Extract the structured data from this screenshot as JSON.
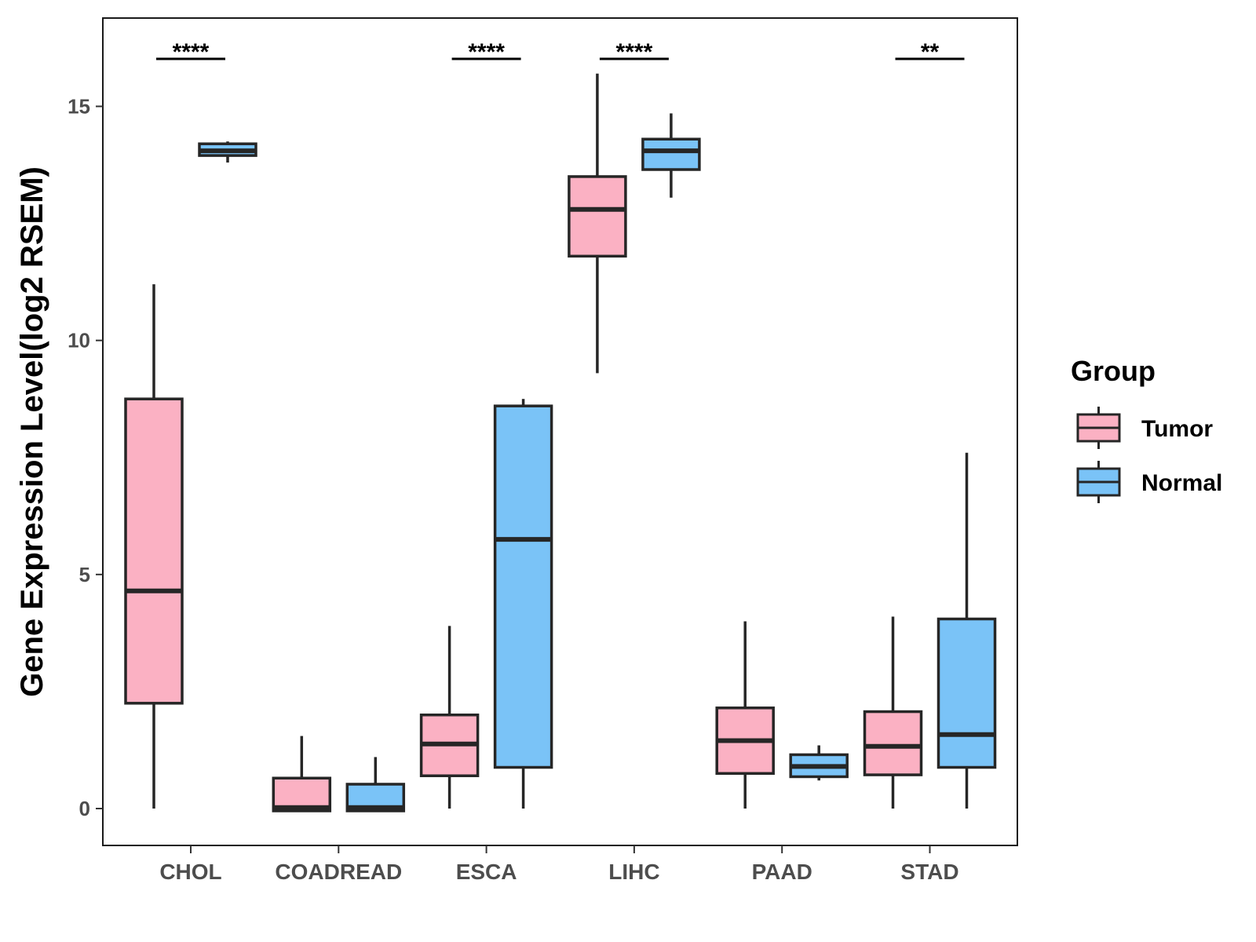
{
  "chart_data": {
    "type": "boxplot",
    "ylabel": "Gene Expression Level(log2 RSEM)",
    "xlabel": "",
    "ylim": [
      -0.8,
      16.9
    ],
    "yticks": [
      0,
      5,
      10,
      15
    ],
    "ytick_labels": [
      "0",
      "5",
      "10",
      "15"
    ],
    "categories": [
      "CHOL",
      "COADREAD",
      "ESCA",
      "LIHC",
      "PAAD",
      "STAD"
    ],
    "legend": {
      "title": "Group",
      "placement": "right",
      "items": [
        {
          "label": "Tumor",
          "color": "#FBB1C3"
        },
        {
          "label": "Normal",
          "color": "#7AC3F7"
        }
      ]
    },
    "series": [
      {
        "name": "Tumor",
        "color": "#FBB1C3",
        "boxes": [
          {
            "min": 0.0,
            "q1": 2.25,
            "median": 4.65,
            "q3": 8.75,
            "max": 11.2
          },
          {
            "min": -0.05,
            "q1": -0.05,
            "median": 0.02,
            "q3": 0.65,
            "max": 1.55
          },
          {
            "min": 0.0,
            "q1": 0.7,
            "median": 1.38,
            "q3": 2.0,
            "max": 3.9
          },
          {
            "min": 9.3,
            "q1": 11.8,
            "median": 12.8,
            "q3": 13.5,
            "max": 15.7
          },
          {
            "min": 0.0,
            "q1": 0.75,
            "median": 1.45,
            "q3": 2.15,
            "max": 4.0
          },
          {
            "min": 0.0,
            "q1": 0.72,
            "median": 1.33,
            "q3": 2.07,
            "max": 4.1
          }
        ]
      },
      {
        "name": "Normal",
        "color": "#7AC3F7",
        "boxes": [
          {
            "min": 13.8,
            "q1": 13.95,
            "median": 14.05,
            "q3": 14.2,
            "max": 14.25
          },
          {
            "min": -0.05,
            "q1": -0.05,
            "median": 0.02,
            "q3": 0.52,
            "max": 1.1
          },
          {
            "min": 0.0,
            "q1": 0.88,
            "median": 5.75,
            "q3": 8.6,
            "max": 8.75
          },
          {
            "min": 13.05,
            "q1": 13.65,
            "median": 14.05,
            "q3": 14.3,
            "max": 14.85
          },
          {
            "min": 0.6,
            "q1": 0.68,
            "median": 0.9,
            "q3": 1.15,
            "max": 1.35
          },
          {
            "min": 0.0,
            "q1": 0.88,
            "median": 1.58,
            "q3": 4.05,
            "max": 7.6
          }
        ]
      }
    ],
    "significance": [
      "****",
      "",
      "****",
      "****",
      "",
      "**"
    ]
  }
}
